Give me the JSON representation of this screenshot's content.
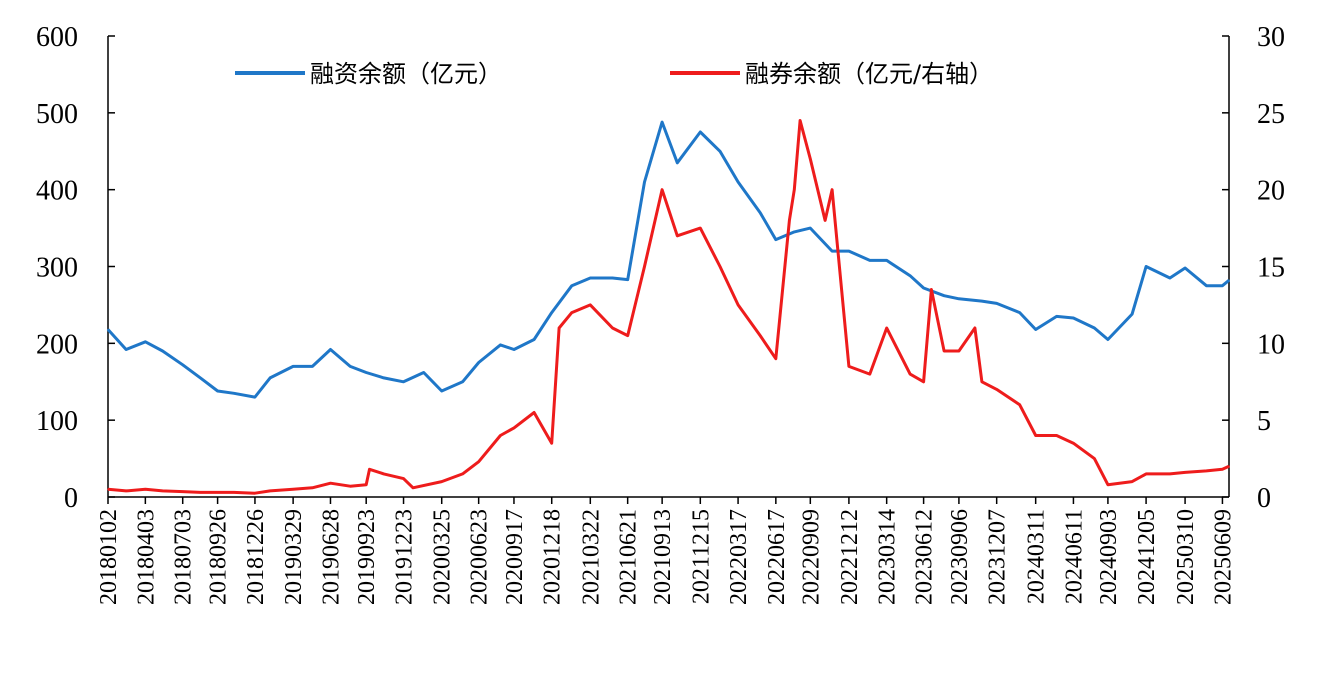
{
  "chart_data": {
    "type": "line",
    "legend_placement": "top",
    "grid": false,
    "y_left": {
      "ylim": [
        0,
        600
      ],
      "ticks": [
        "0",
        "100",
        "200",
        "300",
        "400",
        "500",
        "600"
      ]
    },
    "y_right": {
      "ylim": [
        0,
        30
      ],
      "ticks": [
        "0",
        "5",
        "10",
        "15",
        "20",
        "25",
        "30"
      ]
    },
    "x_tick_labels": [
      "20180102",
      "20180403",
      "20180703",
      "20180926",
      "20181226",
      "20190329",
      "20190628",
      "20190923",
      "20191223",
      "20200325",
      "20200623",
      "20200917",
      "20201218",
      "20210322",
      "20210621",
      "20210913",
      "20211215",
      "20220317",
      "20220617",
      "20220909",
      "20221212",
      "20230314",
      "20230612",
      "20230906",
      "20231207",
      "20240311",
      "20240611",
      "20240903",
      "20241205",
      "20250310",
      "20250609"
    ],
    "series": [
      {
        "name": "融资余额（亿元）",
        "axis": "left",
        "color": "#1f77c8",
        "x": [
          "20180102",
          "20180215",
          "20180403",
          "20180515",
          "20180703",
          "20180815",
          "20180926",
          "20181105",
          "20181226",
          "20190201",
          "20190329",
          "20190515",
          "20190628",
          "20190815",
          "20190923",
          "20191105",
          "20191223",
          "20200210",
          "20200325",
          "20200515",
          "20200623",
          "20200815",
          "20200917",
          "20201105",
          "20201218",
          "20210205",
          "20210322",
          "20210515",
          "20210621",
          "20210801",
          "20210913",
          "20211020",
          "20211215",
          "20220201",
          "20220317",
          "20220510",
          "20220617",
          "20220801",
          "20220909",
          "20221101",
          "20221212",
          "20230201",
          "20230314",
          "20230510",
          "20230612",
          "20230801",
          "20230906",
          "20231101",
          "20231207",
          "20240201",
          "20240311",
          "20240501",
          "20240611",
          "20240801",
          "20240903",
          "20241101",
          "20241205",
          "20250201",
          "20250310",
          "20250501",
          "20250609",
          "20250625"
        ],
        "values": [
          218,
          192,
          202,
          190,
          172,
          155,
          138,
          135,
          130,
          155,
          170,
          170,
          192,
          170,
          162,
          155,
          150,
          162,
          138,
          150,
          175,
          198,
          192,
          205,
          240,
          275,
          285,
          285,
          283,
          410,
          488,
          435,
          475,
          450,
          410,
          370,
          335,
          345,
          350,
          320,
          320,
          308,
          308,
          288,
          272,
          262,
          258,
          255,
          252,
          240,
          218,
          235,
          233,
          220,
          205,
          238,
          300,
          285,
          298,
          275,
          275,
          282
        ]
      },
      {
        "name": "融券余额（亿元/右轴）",
        "axis": "right",
        "color": "#ee1c1c",
        "x": [
          "20180102",
          "20180215",
          "20180403",
          "20180515",
          "20180703",
          "20180815",
          "20180926",
          "20181105",
          "20181226",
          "20190201",
          "20190329",
          "20190515",
          "20190628",
          "20190815",
          "20190923",
          "20191001",
          "20191105",
          "20191223",
          "20200115",
          "20200325",
          "20200515",
          "20200623",
          "20200815",
          "20200917",
          "20201105",
          "20201218",
          "20210105",
          "20210205",
          "20210322",
          "20210515",
          "20210621",
          "20210801",
          "20210913",
          "20211020",
          "20211215",
          "20220201",
          "20220317",
          "20220510",
          "20220617",
          "20220720",
          "20220801",
          "20220815",
          "20220909",
          "20221015",
          "20221101",
          "20221212",
          "20230201",
          "20230314",
          "20230510",
          "20230612",
          "20230701",
          "20230801",
          "20230906",
          "20231015",
          "20231101",
          "20231207",
          "20240201",
          "20240311",
          "20240501",
          "20240611",
          "20240801",
          "20240903",
          "20241101",
          "20241205",
          "20250201",
          "20250310",
          "20250501",
          "20250609",
          "20250625"
        ],
        "values": [
          0.5,
          0.4,
          0.5,
          0.4,
          0.35,
          0.3,
          0.3,
          0.3,
          0.25,
          0.4,
          0.5,
          0.6,
          0.9,
          0.7,
          0.8,
          1.8,
          1.5,
          1.2,
          0.6,
          1.0,
          1.5,
          2.3,
          4.0,
          4.5,
          5.5,
          3.5,
          11.0,
          12.0,
          12.5,
          11.0,
          10.5,
          15.0,
          20.0,
          17.0,
          17.5,
          15.0,
          12.5,
          10.5,
          9.0,
          18.0,
          20.0,
          24.5,
          22.0,
          18.0,
          20.0,
          8.5,
          8.0,
          11.0,
          8.0,
          7.5,
          13.5,
          9.5,
          9.5,
          11.0,
          7.5,
          7.0,
          6.0,
          4.0,
          4.0,
          3.5,
          2.5,
          0.8,
          1.0,
          1.5,
          1.5,
          1.6,
          1.7,
          1.8,
          2.0
        ]
      }
    ]
  }
}
